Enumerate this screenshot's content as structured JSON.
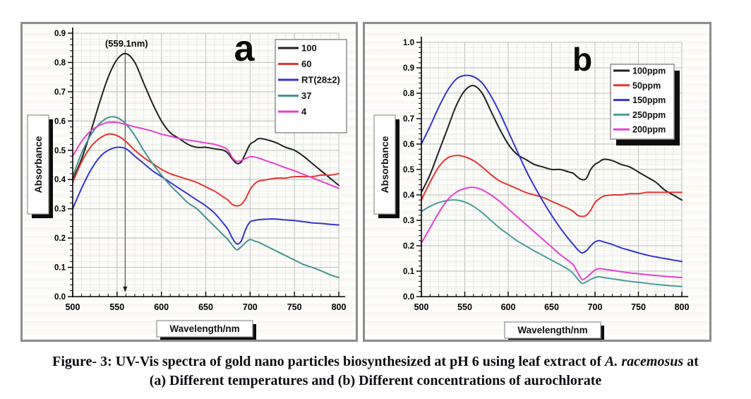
{
  "figure": {
    "caption": {
      "line1_prefix": "Figure- 3:  UV-Vis spectra of gold nano particles biosynthesized at pH 6 using leaf extract of ",
      "line1_italic": "A. racemosus",
      "line1_suffix": " at",
      "line2": "(a) Different temperatures and (b) Different concentrations of aurochlorate"
    }
  },
  "chart_data": [
    {
      "id": "a",
      "panel_label": "a",
      "type": "line",
      "xlabel": "Wavelength/nm",
      "ylabel": "Absorbance",
      "xlim": [
        500,
        800
      ],
      "ylim": [
        0,
        0.9
      ],
      "x_major_tick": 50,
      "x_minor_tick": 10,
      "y_major_tick": 0.1,
      "y_minor_tick": 0.02,
      "grid": true,
      "legend_position": "top-right",
      "annotation": {
        "text": "(559.1nm)",
        "x_nm": 559.1,
        "arrow_bottom_abs": 0.02
      },
      "axis_color": "#000000",
      "grid_major_color": "#bcc6bc",
      "grid_minor_color": "#e2e8e1",
      "x": [
        500,
        510,
        520,
        530,
        540,
        550,
        560,
        570,
        580,
        590,
        600,
        610,
        620,
        630,
        640,
        650,
        660,
        670,
        675,
        680,
        685,
        690,
        695,
        700,
        705,
        710,
        720,
        730,
        740,
        750,
        760,
        770,
        780,
        790,
        800
      ],
      "series": [
        {
          "name": "100",
          "color": "#212121",
          "values": [
            0.4,
            0.47,
            0.56,
            0.66,
            0.75,
            0.81,
            0.83,
            0.8,
            0.73,
            0.66,
            0.6,
            0.56,
            0.54,
            0.52,
            0.51,
            0.51,
            0.505,
            0.5,
            0.49,
            0.47,
            0.455,
            0.46,
            0.49,
            0.52,
            0.53,
            0.54,
            0.535,
            0.525,
            0.51,
            0.5,
            0.48,
            0.455,
            0.43,
            0.405,
            0.38
          ]
        },
        {
          "name": "60",
          "color": "#e53531",
          "values": [
            0.39,
            0.46,
            0.51,
            0.54,
            0.555,
            0.55,
            0.53,
            0.5,
            0.475,
            0.455,
            0.435,
            0.42,
            0.41,
            0.4,
            0.39,
            0.375,
            0.36,
            0.34,
            0.33,
            0.315,
            0.31,
            0.315,
            0.335,
            0.365,
            0.385,
            0.395,
            0.4,
            0.405,
            0.405,
            0.41,
            0.41,
            0.41,
            0.415,
            0.415,
            0.42
          ]
        },
        {
          "name": "RT(28±2)",
          "color": "#3534cf",
          "values": [
            0.3,
            0.37,
            0.43,
            0.475,
            0.5,
            0.51,
            0.505,
            0.48,
            0.455,
            0.43,
            0.41,
            0.39,
            0.37,
            0.35,
            0.33,
            0.31,
            0.285,
            0.25,
            0.23,
            0.2,
            0.18,
            0.19,
            0.23,
            0.255,
            0.26,
            0.263,
            0.265,
            0.265,
            0.262,
            0.26,
            0.256,
            0.252,
            0.25,
            0.247,
            0.245
          ]
        },
        {
          "name": "37",
          "color": "#44948e",
          "values": [
            0.41,
            0.49,
            0.55,
            0.59,
            0.612,
            0.612,
            0.59,
            0.55,
            0.5,
            0.455,
            0.415,
            0.38,
            0.35,
            0.32,
            0.3,
            0.27,
            0.24,
            0.21,
            0.195,
            0.175,
            0.16,
            0.17,
            0.185,
            0.195,
            0.19,
            0.185,
            0.17,
            0.155,
            0.14,
            0.125,
            0.11,
            0.1,
            0.088,
            0.075,
            0.065
          ]
        },
        {
          "name": "4",
          "color": "#e641d0",
          "values": [
            0.48,
            0.53,
            0.565,
            0.585,
            0.595,
            0.595,
            0.588,
            0.58,
            0.573,
            0.565,
            0.555,
            0.548,
            0.54,
            0.535,
            0.53,
            0.525,
            0.52,
            0.51,
            0.5,
            0.475,
            0.462,
            0.465,
            0.472,
            0.478,
            0.477,
            0.473,
            0.462,
            0.452,
            0.44,
            0.43,
            0.418,
            0.406,
            0.394,
            0.382,
            0.37
          ]
        }
      ]
    },
    {
      "id": "b",
      "panel_label": "b",
      "type": "line",
      "xlabel": "Wavelength/nm",
      "ylabel": "Absorbance",
      "xlim": [
        500,
        800
      ],
      "ylim": [
        0,
        1.0
      ],
      "x_major_tick": 50,
      "x_minor_tick": 10,
      "y_major_tick": 0.1,
      "y_minor_tick": 0.02,
      "grid": true,
      "legend_position": "top-right",
      "annotation": null,
      "axis_color": "#000000",
      "grid_major_color": "#bcc6bc",
      "grid_minor_color": "#e2e8e1",
      "x": [
        500,
        510,
        520,
        530,
        540,
        550,
        560,
        570,
        580,
        590,
        600,
        610,
        620,
        630,
        640,
        650,
        660,
        670,
        675,
        680,
        685,
        690,
        695,
        700,
        705,
        710,
        720,
        730,
        740,
        750,
        760,
        770,
        780,
        790,
        800
      ],
      "series": [
        {
          "name": "100ppm",
          "color": "#212121",
          "values": [
            0.41,
            0.48,
            0.57,
            0.66,
            0.75,
            0.81,
            0.83,
            0.8,
            0.73,
            0.66,
            0.6,
            0.56,
            0.54,
            0.52,
            0.51,
            0.5,
            0.5,
            0.49,
            0.485,
            0.47,
            0.46,
            0.465,
            0.5,
            0.52,
            0.53,
            0.54,
            0.535,
            0.52,
            0.51,
            0.49,
            0.47,
            0.45,
            0.42,
            0.4,
            0.38
          ]
        },
        {
          "name": "50ppm",
          "color": "#e53531",
          "values": [
            0.38,
            0.45,
            0.51,
            0.545,
            0.555,
            0.55,
            0.535,
            0.51,
            0.48,
            0.455,
            0.44,
            0.425,
            0.41,
            0.4,
            0.39,
            0.375,
            0.36,
            0.345,
            0.335,
            0.32,
            0.315,
            0.32,
            0.34,
            0.37,
            0.385,
            0.395,
            0.4,
            0.4,
            0.405,
            0.405,
            0.41,
            0.41,
            0.41,
            0.41,
            0.41
          ]
        },
        {
          "name": "150ppm",
          "color": "#3534cf",
          "values": [
            0.6,
            0.67,
            0.745,
            0.81,
            0.855,
            0.87,
            0.865,
            0.84,
            0.79,
            0.725,
            0.65,
            0.575,
            0.5,
            0.435,
            0.375,
            0.32,
            0.27,
            0.225,
            0.205,
            0.185,
            0.172,
            0.18,
            0.2,
            0.215,
            0.22,
            0.215,
            0.205,
            0.192,
            0.182,
            0.172,
            0.163,
            0.156,
            0.15,
            0.144,
            0.138
          ]
        },
        {
          "name": "250ppm",
          "color": "#4a9e9b",
          "values": [
            0.335,
            0.355,
            0.37,
            0.378,
            0.38,
            0.372,
            0.355,
            0.33,
            0.3,
            0.27,
            0.245,
            0.22,
            0.2,
            0.18,
            0.162,
            0.143,
            0.125,
            0.105,
            0.09,
            0.07,
            0.052,
            0.058,
            0.068,
            0.075,
            0.078,
            0.075,
            0.07,
            0.065,
            0.06,
            0.056,
            0.052,
            0.048,
            0.045,
            0.042,
            0.04
          ]
        },
        {
          "name": "200ppm",
          "color": "#e641d0",
          "values": [
            0.21,
            0.27,
            0.33,
            0.38,
            0.41,
            0.425,
            0.43,
            0.42,
            0.4,
            0.375,
            0.345,
            0.315,
            0.285,
            0.255,
            0.225,
            0.195,
            0.165,
            0.14,
            0.125,
            0.095,
            0.068,
            0.075,
            0.09,
            0.105,
            0.11,
            0.108,
            0.103,
            0.098,
            0.093,
            0.09,
            0.086,
            0.083,
            0.08,
            0.077,
            0.075
          ]
        }
      ]
    }
  ]
}
